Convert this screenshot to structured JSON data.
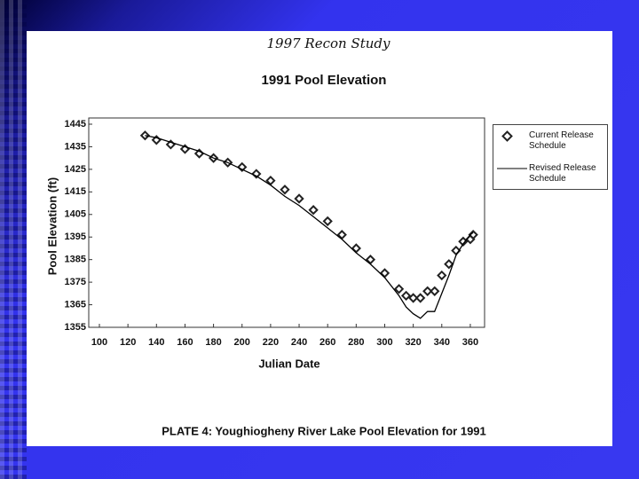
{
  "chart_data": {
    "type": "line",
    "title": "1991 Pool Elevation",
    "note": "1997 Recon Study",
    "caption": "PLATE 4:  Youghiogheny River Lake Pool Elevation for 1991",
    "xlabel": "Julian Date",
    "ylabel": "Pool Elevation (ft)",
    "x": [
      132,
      140,
      150,
      160,
      170,
      180,
      190,
      200,
      210,
      220,
      230,
      240,
      250,
      260,
      270,
      280,
      290,
      300,
      310,
      315,
      320,
      325,
      330,
      335,
      340,
      345,
      350,
      355,
      360,
      362
    ],
    "series": [
      {
        "name": "Current Release Schedule",
        "color": "#222222",
        "marker": "diamond",
        "values": [
          1440,
          1438,
          1436,
          1434,
          1432,
          1430,
          1428,
          1426,
          1423,
          1420,
          1416,
          1412,
          1407,
          1402,
          1396,
          1390,
          1385,
          1379,
          1372,
          1369,
          1368,
          1368,
          1371,
          1371,
          1378,
          1383,
          1389,
          1393,
          1394,
          1396
        ]
      },
      {
        "name": "Revised Release Schedule",
        "color": "#000000",
        "values": [
          1440,
          1439,
          1437,
          1435,
          1433,
          1430,
          1428,
          1425,
          1422,
          1418,
          1413,
          1409,
          1404,
          1399,
          1394,
          1388,
          1383,
          1377,
          1369,
          1364,
          1361,
          1359,
          1362,
          1362,
          1370,
          1378,
          1387,
          1392,
          1396,
          1397
        ]
      }
    ],
    "xlim": [
      100,
      370
    ],
    "xticks": [
      100,
      120,
      140,
      160,
      180,
      200,
      220,
      240,
      260,
      280,
      300,
      320,
      340,
      360
    ],
    "ylim": [
      1355,
      1445
    ],
    "yticks": [
      1355,
      1365,
      1375,
      1385,
      1395,
      1405,
      1415,
      1425,
      1435,
      1445
    ],
    "grid": false
  }
}
